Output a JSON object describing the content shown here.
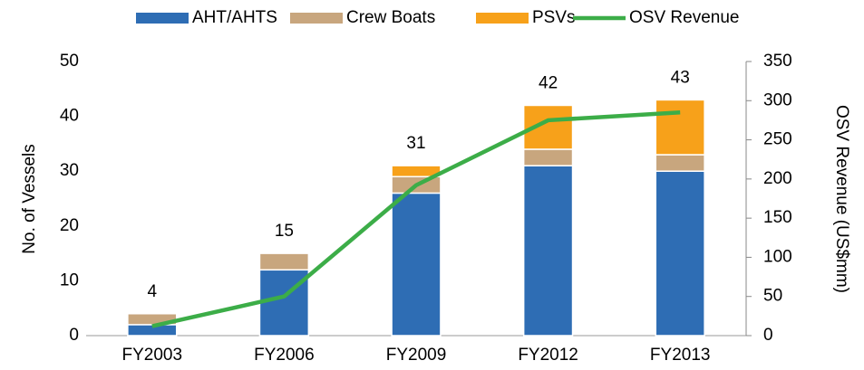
{
  "chart_data": {
    "type": "bar",
    "categories": [
      "FY2003",
      "FY2006",
      "FY2009",
      "FY2012",
      "FY2013"
    ],
    "series": [
      {
        "name": "AHT/AHTS",
        "color": "#2e6db4",
        "values": [
          2,
          12,
          26,
          31,
          30
        ]
      },
      {
        "name": "Crew Boats",
        "color": "#c8a67e",
        "values": [
          2,
          3,
          3,
          3,
          3
        ]
      },
      {
        "name": "PSVs",
        "color": "#f7a11a",
        "values": [
          0,
          0,
          2,
          8,
          10
        ]
      },
      {
        "name": "OSV Revenue",
        "type": "line",
        "axis": "y2",
        "color": "#3cad48",
        "values": [
          12,
          50,
          192,
          275,
          285
        ]
      }
    ],
    "totals": [
      4,
      15,
      31,
      42,
      43
    ],
    "ylabel": "No. of Vessels",
    "y2label": "OSV Revenue (US$mm)",
    "ylim": [
      0,
      50
    ],
    "yticks": [
      0,
      10,
      20,
      30,
      40,
      50
    ],
    "y2lim": [
      0,
      350
    ],
    "y2ticks": [
      0,
      50,
      100,
      150,
      200,
      250,
      300,
      350
    ],
    "grid": false,
    "legend": "top"
  }
}
